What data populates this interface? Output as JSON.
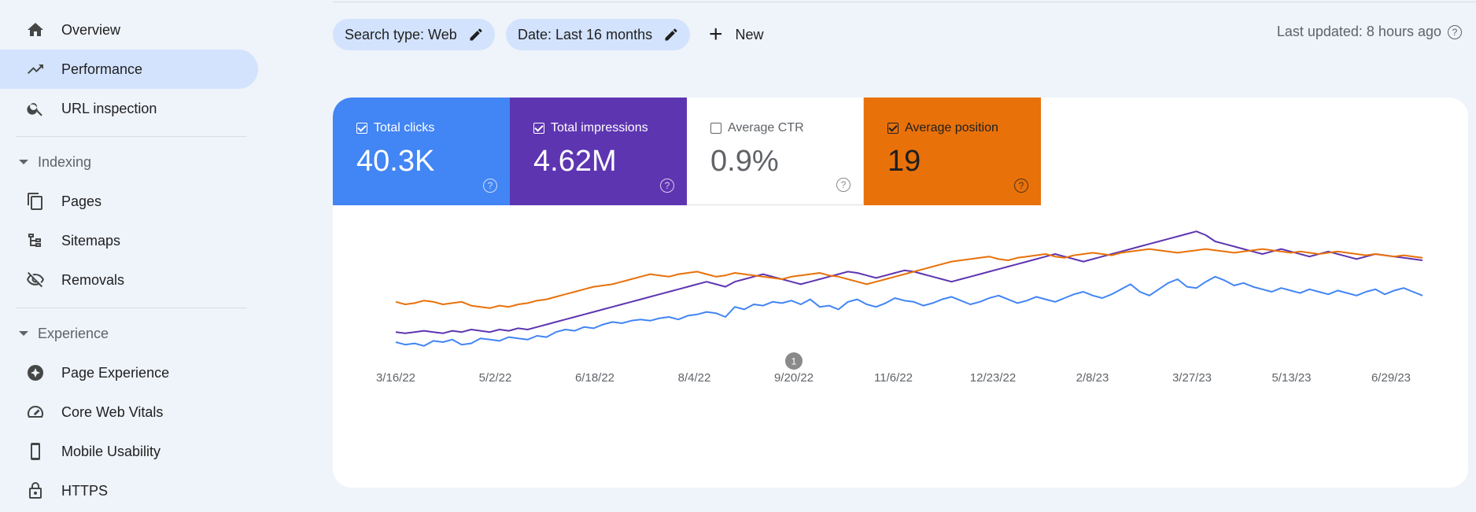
{
  "sidebar": {
    "items": [
      {
        "label": "Overview",
        "icon": "home-icon"
      },
      {
        "label": "Performance",
        "icon": "trending-up-icon",
        "active": true
      },
      {
        "label": "URL inspection",
        "icon": "search-icon"
      }
    ],
    "sections": [
      {
        "title": "Indexing",
        "items": [
          {
            "label": "Pages",
            "icon": "pages-icon"
          },
          {
            "label": "Sitemaps",
            "icon": "sitemap-icon"
          },
          {
            "label": "Removals",
            "icon": "eye-off-icon"
          }
        ]
      },
      {
        "title": "Experience",
        "items": [
          {
            "label": "Page Experience",
            "icon": "page-experience-icon"
          },
          {
            "label": "Core Web Vitals",
            "icon": "gauge-icon"
          },
          {
            "label": "Mobile Usability",
            "icon": "smartphone-icon"
          },
          {
            "label": "HTTPS",
            "icon": "lock-icon"
          }
        ]
      }
    ]
  },
  "filters": {
    "search_type": "Search type: Web",
    "date": "Date: Last 16 months",
    "new_label": "New",
    "last_updated": "Last updated: 8 hours ago"
  },
  "metrics": [
    {
      "label": "Total clicks",
      "value": "40.3K",
      "checked": true,
      "color": "#4285f4"
    },
    {
      "label": "Total impressions",
      "value": "4.62M",
      "checked": true,
      "color": "#5e35b1"
    },
    {
      "label": "Average CTR",
      "value": "0.9%",
      "checked": false,
      "color": "#ffffff"
    },
    {
      "label": "Average position",
      "value": "19",
      "checked": true,
      "color": "#e8710a"
    }
  ],
  "chart_data": {
    "type": "line",
    "x_tick_labels": [
      "3/16/22",
      "5/2/22",
      "6/18/22",
      "8/4/22",
      "9/20/22",
      "11/6/22",
      "12/23/22",
      "2/8/23",
      "3/27/23",
      "5/13/23",
      "6/29/23"
    ],
    "x_range": [
      "3/16/22",
      "7/16/23"
    ],
    "annotation": {
      "label": "1",
      "date": "9/20/22"
    },
    "grid": false,
    "legend": "none",
    "series": [
      {
        "name": "Total clicks",
        "color": "#4285f4",
        "values": [
          10,
          8,
          9,
          7,
          11,
          10,
          12,
          8,
          9,
          13,
          12,
          11,
          14,
          13,
          12,
          15,
          14,
          18,
          20,
          19,
          22,
          21,
          24,
          26,
          25,
          27,
          28,
          27,
          29,
          30,
          28,
          31,
          32,
          34,
          33,
          30,
          38,
          36,
          40,
          39,
          42,
          41,
          43,
          40,
          44,
          38,
          39,
          36,
          42,
          44,
          40,
          38,
          41,
          45,
          43,
          42,
          39,
          41,
          44,
          46,
          43,
          40,
          42,
          45,
          47,
          44,
          41,
          43,
          46,
          44,
          42,
          45,
          48,
          50,
          47,
          45,
          48,
          52,
          56,
          50,
          47,
          52,
          57,
          60,
          54,
          53,
          58,
          62,
          59,
          55,
          57,
          54,
          52,
          50,
          53,
          51,
          49,
          52,
          50,
          48,
          51,
          49,
          47,
          50,
          52,
          48,
          51,
          53,
          50,
          47
        ]
      },
      {
        "name": "Total impressions",
        "color": "#5e35b1",
        "values": [
          18,
          17,
          18,
          19,
          18,
          17,
          19,
          18,
          20,
          19,
          18,
          20,
          19,
          21,
          20,
          22,
          24,
          26,
          28,
          30,
          32,
          34,
          36,
          38,
          40,
          42,
          44,
          46,
          48,
          50,
          52,
          54,
          56,
          58,
          56,
          54,
          58,
          60,
          62,
          64,
          62,
          60,
          58,
          56,
          58,
          60,
          62,
          64,
          66,
          65,
          63,
          61,
          63,
          65,
          67,
          66,
          64,
          62,
          60,
          58,
          60,
          62,
          64,
          66,
          68,
          70,
          72,
          74,
          76,
          78,
          80,
          78,
          76,
          74,
          76,
          78,
          80,
          82,
          84,
          86,
          88,
          90,
          92,
          94,
          96,
          98,
          95,
          90,
          88,
          86,
          84,
          82,
          80,
          82,
          84,
          82,
          80,
          78,
          80,
          82,
          80,
          78,
          76,
          78,
          80,
          79,
          78,
          77,
          76,
          75
        ]
      },
      {
        "name": "Average position",
        "color": "#e8710a",
        "values": [
          42,
          40,
          41,
          43,
          42,
          40,
          41,
          42,
          39,
          38,
          37,
          39,
          38,
          40,
          41,
          43,
          44,
          46,
          48,
          50,
          52,
          54,
          55,
          56,
          58,
          60,
          62,
          64,
          63,
          62,
          64,
          65,
          66,
          64,
          62,
          63,
          65,
          64,
          63,
          62,
          61,
          60,
          62,
          63,
          64,
          65,
          63,
          62,
          60,
          58,
          56,
          58,
          60,
          62,
          64,
          66,
          68,
          70,
          72,
          74,
          75,
          76,
          77,
          78,
          76,
          75,
          77,
          78,
          79,
          80,
          78,
          77,
          79,
          80,
          81,
          80,
          79,
          81,
          82,
          83,
          84,
          83,
          82,
          81,
          82,
          83,
          84,
          83,
          82,
          81,
          82,
          83,
          84,
          83,
          82,
          81,
          82,
          81,
          80,
          81,
          82,
          81,
          80,
          79,
          80,
          79,
          78,
          79,
          78,
          77
        ]
      }
    ]
  }
}
